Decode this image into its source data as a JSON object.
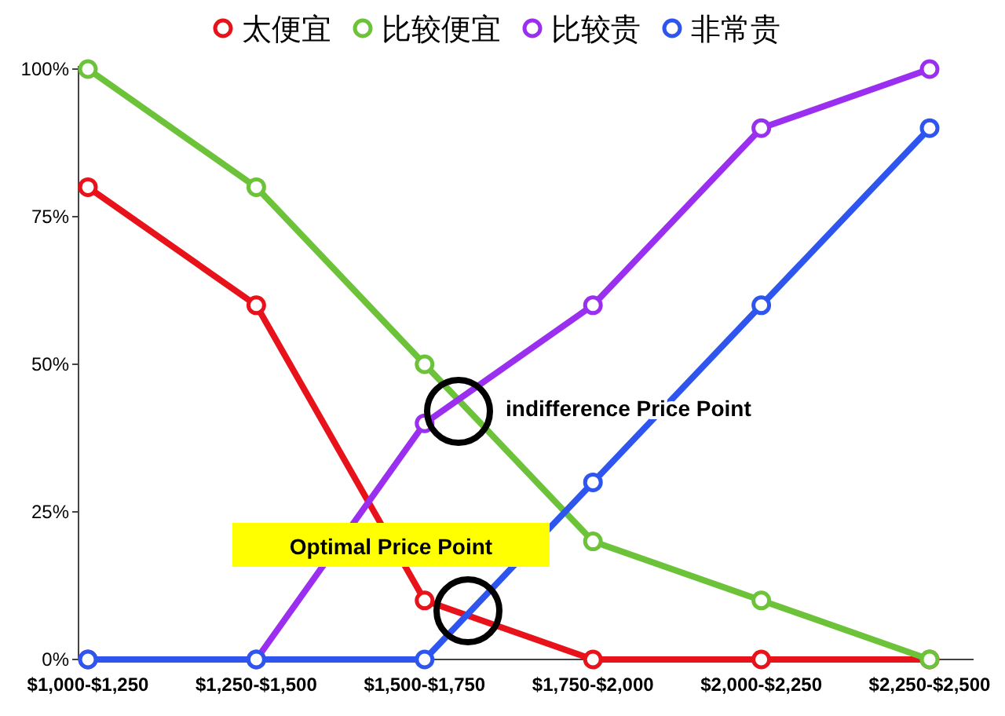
{
  "chart_data": {
    "type": "line",
    "categories": [
      "$1,000-$1,250",
      "$1,250-$1,500",
      "$1,500-$1,750",
      "$1,750-$2,000",
      "$2,000-$2,250",
      "$2,250-$2,500"
    ],
    "series": [
      {
        "name": "太便宜",
        "color": "#e8121b",
        "values": [
          80,
          60,
          10,
          0,
          0,
          0
        ]
      },
      {
        "name": "比较便宜",
        "color": "#6cc33a",
        "values": [
          100,
          80,
          50,
          20,
          10,
          0
        ]
      },
      {
        "name": "比较贵",
        "color": "#9b2ff0",
        "values": [
          0,
          0,
          40,
          60,
          90,
          100
        ]
      },
      {
        "name": "非常贵",
        "color": "#2f55ef",
        "values": [
          0,
          0,
          0,
          30,
          60,
          90
        ]
      }
    ],
    "ylim": [
      0,
      100
    ],
    "yticks": [
      {
        "value": 0,
        "label": "0%"
      },
      {
        "value": 25,
        "label": "25%"
      },
      {
        "value": 50,
        "label": "50%"
      },
      {
        "value": 75,
        "label": "75%"
      },
      {
        "value": 100,
        "label": "100%"
      }
    ],
    "legend": "top",
    "marker": "circle",
    "line_style": "solid",
    "annotations": [
      "indifference Price Point",
      "Optimal Price Point"
    ]
  }
}
